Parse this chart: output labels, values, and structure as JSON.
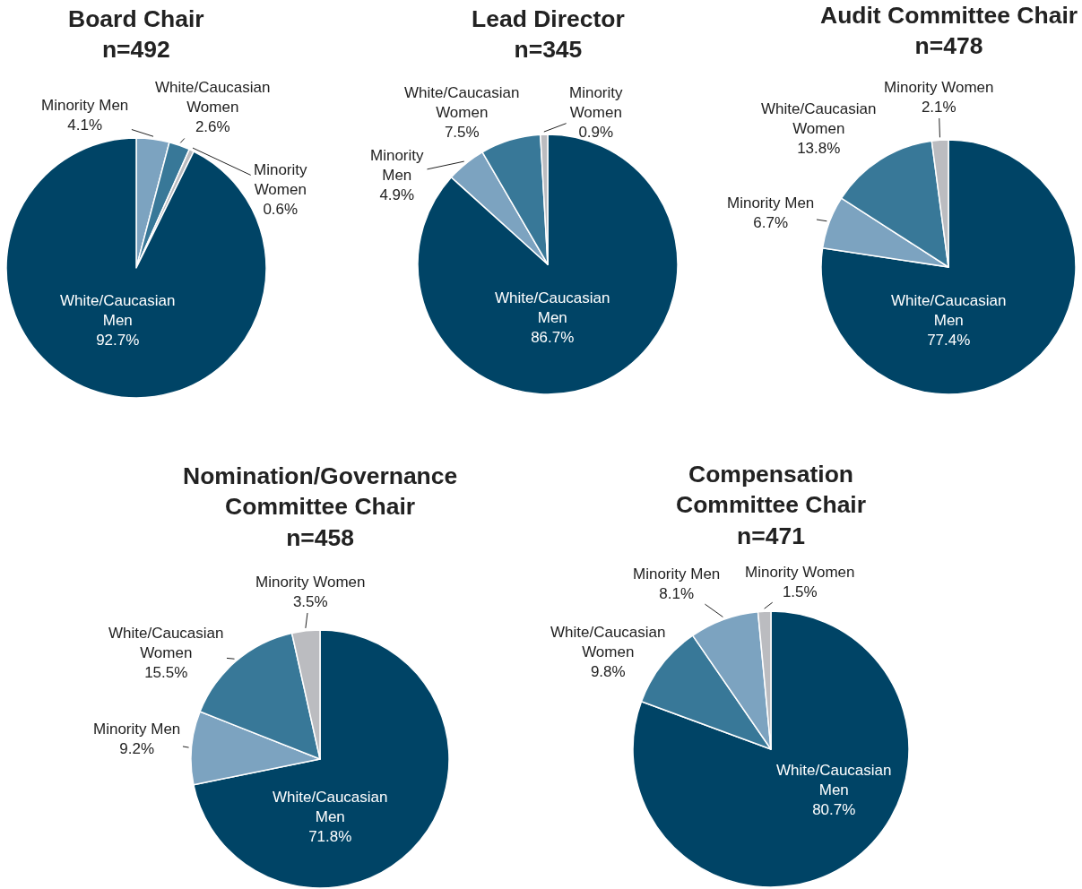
{
  "chart_data": [
    {
      "type": "pie",
      "title": "Board Chair",
      "subtitle": "n=492",
      "categories": [
        "Minority Men",
        "White/Caucasian Women",
        "Minority Women",
        "White/Caucasian Men"
      ],
      "values": [
        4.1,
        2.6,
        0.6,
        92.7
      ],
      "value_labels": [
        "4.1%",
        "2.6%",
        "0.6%",
        "92.7%"
      ],
      "colors": [
        "#7ca3c0",
        "#387898",
        "#bbbcc0",
        "#004466"
      ]
    },
    {
      "type": "pie",
      "title": "Lead Director",
      "subtitle": "n=345",
      "categories": [
        "White/Caucasian Men",
        "Minority Men",
        "White/Caucasian Women",
        "Minority Women"
      ],
      "values": [
        86.7,
        4.9,
        7.5,
        0.9
      ],
      "value_labels": [
        "86.7%",
        "4.9%",
        "7.5%",
        "0.9%"
      ],
      "colors": [
        "#004466",
        "#7ca3c0",
        "#387898",
        "#bbbcc0"
      ]
    },
    {
      "type": "pie",
      "title": "Audit Committee Chair",
      "subtitle": "n=478",
      "categories": [
        "White/Caucasian Men",
        "Minority Men",
        "White/Caucasian Women",
        "Minority Women"
      ],
      "values": [
        77.4,
        6.7,
        13.8,
        2.1
      ],
      "value_labels": [
        "77.4%",
        "6.7%",
        "13.8%",
        "2.1%"
      ],
      "colors": [
        "#004466",
        "#7ca3c0",
        "#387898",
        "#bbbcc0"
      ]
    },
    {
      "type": "pie",
      "title": "Nomination/Governance Committee Chair",
      "subtitle": "n=458",
      "categories": [
        "White/Caucasian Men",
        "Minority Men",
        "White/Caucasian Women",
        "Minority Women"
      ],
      "values": [
        71.8,
        9.2,
        15.5,
        3.5
      ],
      "value_labels": [
        "71.8%",
        "9.2%",
        "15.5%",
        "3.5%"
      ],
      "colors": [
        "#004466",
        "#7ca3c0",
        "#387898",
        "#bbbcc0"
      ]
    },
    {
      "type": "pie",
      "title": "Compensation Committee Chair",
      "subtitle": "n=471",
      "categories": [
        "White/Caucasian Men",
        "White/Caucasian Women",
        "Minority Men",
        "Minority Women"
      ],
      "values": [
        80.7,
        9.8,
        8.1,
        1.5
      ],
      "value_labels": [
        "80.7%",
        "9.8%",
        "8.1%",
        "1.5%"
      ],
      "colors": [
        "#004466",
        "#387898",
        "#7ca3c0",
        "#bbbcc0"
      ]
    }
  ]
}
